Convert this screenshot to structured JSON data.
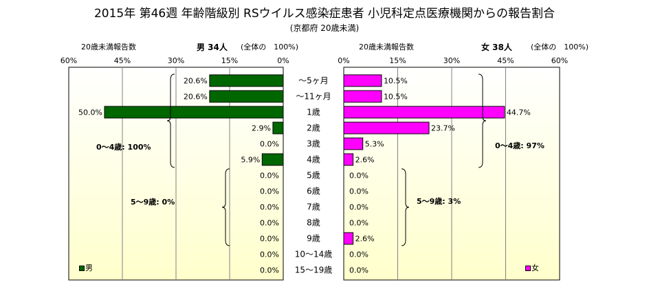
{
  "header": {
    "title": "2015年 第46週 年齢階級別 RSウイルス感染症患者 小児科定点医療機関からの報告割合",
    "subtitle": "(京都府 20歳未満)"
  },
  "left_panel": {
    "count_label": "20歳未満報告数",
    "sex_label": "男 34人",
    "ratio_label": "(全体の　100%)"
  },
  "right_panel": {
    "count_label": "20歳未満報告数",
    "sex_label": "女 38人",
    "ratio_label": "(全体の　100%)"
  },
  "legend": {
    "male": "男",
    "female": "女"
  },
  "group_labels": {
    "male_0_4": "0～4歳: 100%",
    "male_5_9": "5～9歳: 0%",
    "female_0_4": "0～4歳: 97%",
    "female_5_9": "5～9歳: 3%"
  },
  "colors": {
    "male": "#006600",
    "female": "#ff00ff",
    "plot_bg_top": "#ffffff",
    "plot_bg_bottom": "#ffffcc",
    "grid": "#808080"
  },
  "chart_data": {
    "type": "bar",
    "orientation": "horizontal-population-pyramid",
    "title": "2015年 第46週 年齢階級別 RSウイルス感染症患者 小児科定点医療機関からの報告割合",
    "subtitle": "(京都府 20歳未満)",
    "categories": [
      "～5ヶ月",
      "～11ヶ月",
      "1歳",
      "2歳",
      "3歳",
      "4歳",
      "5歳",
      "6歳",
      "7歳",
      "8歳",
      "9歳",
      "10～14歳",
      "15～19歳"
    ],
    "series": [
      {
        "name": "男",
        "values": [
          20.6,
          20.6,
          50.0,
          2.9,
          0.0,
          5.9,
          0.0,
          0.0,
          0.0,
          0.0,
          0.0,
          0.0,
          0.0
        ]
      },
      {
        "name": "女",
        "values": [
          10.5,
          10.5,
          44.7,
          23.7,
          5.3,
          2.6,
          0.0,
          0.0,
          0.0,
          0.0,
          2.6,
          0.0,
          0.0
        ]
      }
    ],
    "value_labels": {
      "男": [
        "20.6%",
        "20.6%",
        "50.0%",
        "2.9%",
        "0.0%",
        "5.9%",
        "0.0%",
        "0.0%",
        "0.0%",
        "0.0%",
        "0.0%",
        "0.0%",
        "0.0%"
      ],
      "女": [
        "10.5%",
        "10.5%",
        "44.7%",
        "23.7%",
        "5.3%",
        "2.6%",
        "0.0%",
        "0.0%",
        "0.0%",
        "0.0%",
        "2.6%",
        "0.0%",
        "0.0%"
      ]
    },
    "xlim": [
      0,
      60
    ],
    "ticks": [
      60,
      45,
      30,
      15,
      0
    ],
    "tick_labels_left": [
      "60%",
      "45%",
      "30%",
      "15%",
      "0%"
    ],
    "tick_labels_right": [
      "0%",
      "15%",
      "30%",
      "45%",
      "60%"
    ],
    "grid": true,
    "legend_position": "bottom-corners"
  }
}
